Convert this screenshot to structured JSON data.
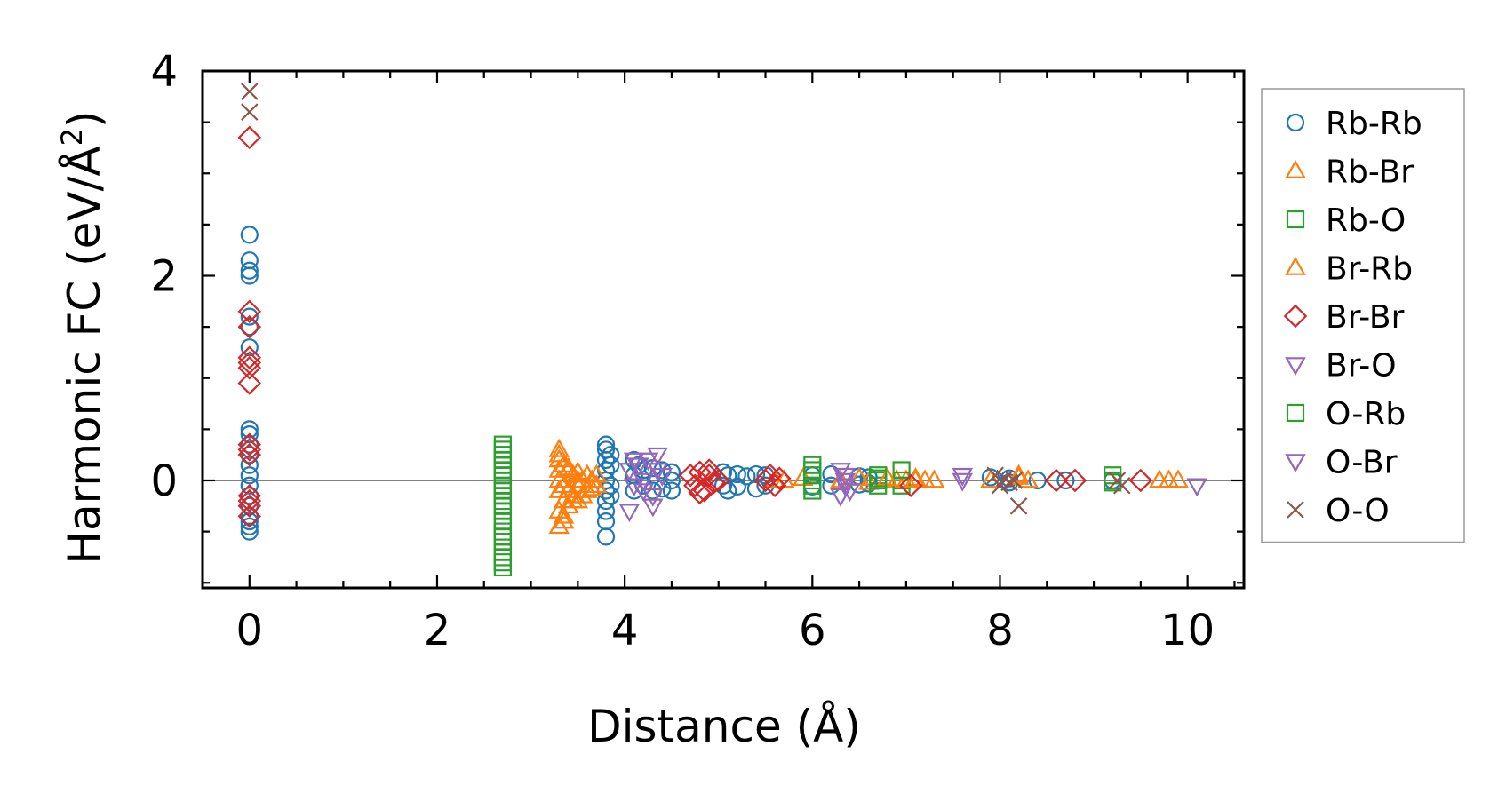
{
  "chart_data": {
    "type": "scatter",
    "title": "",
    "xlabel": "Distance (Å)",
    "ylabel_main": "Harmonic FC (eV/Å",
    "ylabel_sup": "2",
    "ylabel_close": ")",
    "xlim": [
      -0.5,
      10.6
    ],
    "ylim": [
      -1.05,
      4.0
    ],
    "xticks": [
      0,
      2,
      4,
      6,
      8,
      10
    ],
    "xtick_labels": [
      "0",
      "2",
      "4",
      "6",
      "8",
      "10"
    ],
    "yticks": [
      0,
      2,
      4
    ],
    "ytick_labels": [
      "0",
      "2",
      "4"
    ],
    "grid": false,
    "legend_position": "outside-right",
    "zero_line": true,
    "series": [
      {
        "name": "Rb-Rb",
        "marker": "circle",
        "color": "#1f77b4",
        "x": [
          0,
          0,
          0,
          0,
          0,
          0,
          0,
          0,
          0,
          0,
          0,
          0,
          0,
          0,
          0,
          0,
          0,
          0,
          0,
          0,
          3.8,
          3.8,
          3.8,
          3.8,
          3.8,
          3.8,
          3.8,
          3.8,
          3.8,
          3.8,
          3.85,
          3.85,
          3.85,
          3.85,
          4.1,
          4.1,
          4.1,
          4.15,
          4.2,
          4.2,
          4.3,
          4.3,
          4.4,
          4.4,
          4.5,
          4.5,
          4.5,
          5.05,
          5.05,
          5.1,
          5.1,
          5.2,
          5.2,
          5.3,
          5.4,
          5.4,
          5.5,
          5.5,
          6.0,
          6.0,
          6.2,
          6.2,
          6.5,
          6.5,
          6.6,
          6.6,
          7.9,
          8.1,
          8.1,
          8.4,
          8.7,
          9.2
        ],
        "y": [
          2.4,
          2.15,
          2.05,
          2.0,
          1.6,
          1.5,
          1.3,
          0.5,
          0.45,
          0.35,
          0.25,
          0.15,
          0.05,
          -0.05,
          -0.15,
          -0.25,
          -0.35,
          -0.45,
          -0.5,
          -0.4,
          0.35,
          0.3,
          0.2,
          0.1,
          0.0,
          -0.1,
          -0.2,
          -0.3,
          -0.4,
          -0.55,
          0.25,
          0.15,
          -0.05,
          -0.15,
          0.2,
          0.05,
          -0.1,
          0.15,
          0.1,
          -0.05,
          0.12,
          -0.1,
          0.1,
          -0.08,
          0.08,
          0.0,
          -0.1,
          0.08,
          -0.05,
          0.05,
          -0.1,
          0.06,
          -0.06,
          0.04,
          0.06,
          -0.08,
          0.05,
          -0.05,
          0.05,
          -0.06,
          0.06,
          -0.05,
          0.04,
          -0.04,
          0.03,
          -0.03,
          0.03,
          0.02,
          -0.02,
          0.0,
          0.0,
          0.0
        ]
      },
      {
        "name": "Rb-Br",
        "marker": "triangle-up",
        "color": "#ff7f0e",
        "x": [
          3.3,
          3.3,
          3.3,
          3.3,
          3.3,
          3.3,
          3.3,
          3.35,
          3.35,
          3.35,
          3.35,
          3.4,
          3.4,
          3.4,
          3.45,
          3.45,
          3.5,
          3.5,
          3.5,
          3.55,
          3.6,
          3.6,
          3.65,
          3.7,
          3.7,
          5.6,
          5.7,
          5.9,
          6.3,
          6.5,
          6.6,
          6.9,
          7.0,
          7.1,
          7.2,
          7.3,
          7.9,
          8.2,
          8.3,
          9.7,
          9.9
        ],
        "y": [
          0.3,
          0.2,
          0.1,
          0.0,
          -0.1,
          -0.3,
          -0.45,
          0.15,
          -0.05,
          -0.2,
          -0.35,
          0.1,
          -0.1,
          -0.25,
          0.05,
          -0.15,
          0.08,
          -0.05,
          -0.2,
          0.0,
          0.05,
          -0.1,
          0.0,
          0.05,
          -0.05,
          0.0,
          0.0,
          0.02,
          0.0,
          0.02,
          -0.02,
          0.0,
          0.0,
          0.02,
          0.0,
          0.0,
          0.0,
          0.05,
          0.0,
          0.0,
          0.0
        ]
      },
      {
        "name": "Rb-O",
        "marker": "square",
        "color": "#2ca02c",
        "x": [
          2.7,
          2.7,
          2.7,
          2.7,
          2.7,
          2.7,
          2.7,
          2.7,
          2.7,
          2.7,
          2.7,
          2.7,
          2.7,
          2.7,
          2.7,
          2.7,
          2.7,
          2.7,
          2.7,
          2.7,
          6.0,
          6.0,
          6.0,
          6.0,
          6.0,
          6.7,
          6.7,
          6.7,
          6.95,
          6.95,
          6.95,
          9.2,
          9.2
        ],
        "y": [
          0.3,
          0.25,
          0.2,
          0.15,
          0.1,
          0.05,
          0.0,
          -0.05,
          -0.1,
          -0.15,
          -0.2,
          -0.25,
          -0.3,
          -0.4,
          -0.45,
          -0.55,
          -0.6,
          -0.7,
          -0.75,
          -0.85,
          0.1,
          0.05,
          0.0,
          -0.05,
          -0.1,
          0.05,
          0.0,
          -0.05,
          0.1,
          0.0,
          -0.05,
          0.05,
          -0.02
        ]
      },
      {
        "name": "Br-Rb",
        "marker": "triangle-up",
        "color": "#ff7f0e",
        "x": [
          3.3,
          3.35,
          3.4,
          3.45,
          3.5,
          3.55,
          3.6,
          3.65,
          5.7,
          6.3,
          6.8,
          7.1,
          8.2,
          9.8
        ],
        "y": [
          0.25,
          -0.4,
          0.12,
          -0.2,
          0.0,
          -0.15,
          0.05,
          -0.08,
          0.0,
          -0.02,
          0.02,
          0.0,
          0.03,
          0.0
        ]
      },
      {
        "name": "Br-Br",
        "marker": "diamond",
        "color": "#d62728",
        "x": [
          0,
          0,
          0,
          0,
          0,
          0,
          0,
          0,
          0,
          0,
          0,
          0,
          0,
          0,
          4.7,
          4.75,
          4.8,
          4.85,
          4.9,
          4.95,
          5.0,
          4.8,
          4.9,
          5.5,
          5.55,
          5.6,
          5.65,
          7.05,
          8.6,
          8.8,
          9.5
        ],
        "y": [
          3.35,
          1.65,
          1.5,
          1.2,
          1.15,
          1.1,
          0.95,
          0.35,
          0.3,
          0.25,
          -0.15,
          -0.2,
          -0.25,
          -0.35,
          0.05,
          -0.05,
          0.08,
          -0.1,
          0.05,
          -0.02,
          0.0,
          -0.12,
          0.1,
          0.0,
          0.05,
          -0.05,
          0.02,
          -0.05,
          0.0,
          0.0,
          0.0
        ]
      },
      {
        "name": "Br-O",
        "marker": "triangle-down",
        "color": "#9467bd",
        "x": [
          4.05,
          4.1,
          4.15,
          4.2,
          4.25,
          4.3,
          4.35,
          4.4,
          4.3,
          4.35,
          6.3,
          6.35,
          6.4,
          6.3,
          6.35,
          7.6
        ],
        "y": [
          0.1,
          -0.05,
          0.15,
          0.0,
          0.2,
          -0.15,
          0.25,
          0.05,
          -0.25,
          0.1,
          0.1,
          0.0,
          -0.1,
          -0.15,
          0.05,
          0.05
        ]
      },
      {
        "name": "O-Rb",
        "marker": "square",
        "color": "#2ca02c",
        "x": [
          2.7,
          2.7,
          2.7,
          6.0,
          6.7,
          9.2
        ],
        "y": [
          0.35,
          -0.5,
          -0.8,
          0.15,
          0.02,
          0.0
        ]
      },
      {
        "name": "O-Br",
        "marker": "triangle-down",
        "color": "#9467bd",
        "x": [
          4.05,
          4.1,
          4.2,
          6.35,
          7.6,
          10.1
        ],
        "y": [
          -0.3,
          0.2,
          -0.1,
          -0.05,
          0.0,
          -0.05
        ]
      },
      {
        "name": "O-O",
        "marker": "x",
        "color": "#8c564b",
        "x": [
          0,
          0,
          7.95,
          8.0,
          8.05,
          8.1,
          8.15,
          8.2,
          9.25,
          9.3
        ],
        "y": [
          3.8,
          3.6,
          0.05,
          -0.05,
          0.02,
          -0.02,
          0.0,
          -0.25,
          0.0,
          -0.05
        ]
      }
    ]
  }
}
